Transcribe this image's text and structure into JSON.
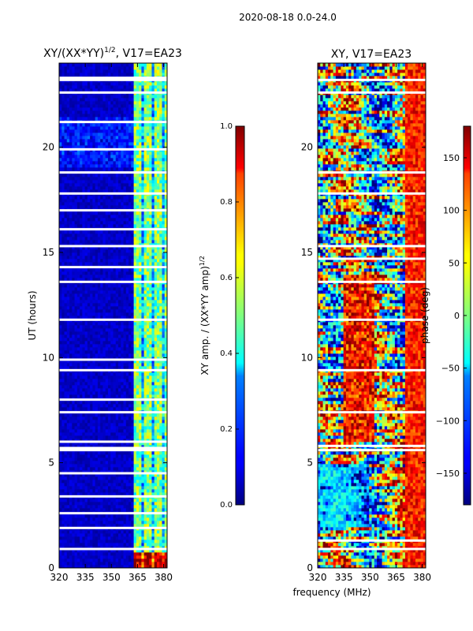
{
  "suptitle": "2020-08-18 0.0-24.0",
  "shared": {
    "xlabel": "frequency (MHz)",
    "ylabel": "UT (hours)",
    "xticks": [
      320,
      335,
      350,
      365,
      380
    ],
    "yticks": [
      0,
      5,
      10,
      15,
      20
    ],
    "xlim": [
      320,
      382
    ],
    "ylim": [
      0,
      24
    ]
  },
  "chart_data": [
    {
      "type": "heatmap",
      "title": "XY/(XX*YY)",
      "title_sup": "1/2",
      "title_suffix": ", V17=EA23",
      "xlabel": "",
      "ylabel": "UT (hours)",
      "xlim": [
        320,
        382
      ],
      "ylim": [
        0,
        24
      ],
      "colorbar": {
        "label": "XY amp. / (XX*YY amp)",
        "label_sup": "1/2",
        "range": [
          0.0,
          1.0
        ],
        "ticks": [
          "0.0",
          "0.2",
          "0.4",
          "0.6",
          "0.8",
          "1.0"
        ],
        "colormap": "jet"
      },
      "description": "amplitude ratio per frequency channel vs time; mostly low (~0.05) below 363 MHz, elevated (0.3-0.6) in channels 363-381 MHz, peaks near 0.9 at 364-378 MHz around 0.5 h",
      "gap_hours": [
        0.9,
        1.9,
        2.6,
        3.4,
        4.5,
        5.6,
        5.7,
        6.0,
        7.4,
        8.0,
        9.4,
        9.9,
        11.8,
        13.6,
        14.3,
        15.3,
        16.1,
        17.0,
        17.8,
        18.8,
        19.9,
        21.2,
        22.6,
        23.2,
        23.3
      ]
    },
    {
      "type": "heatmap",
      "title": "XY, V17=EA23",
      "xlabel": "frequency (MHz)",
      "ylabel": "",
      "xlim": [
        320,
        382
      ],
      "ylim": [
        0,
        24
      ],
      "colorbar": {
        "label": "phase (deg)",
        "range": [
          -180,
          180
        ],
        "ticks": [
          "150",
          "100",
          "50",
          "0",
          "−50",
          "−100",
          "−150"
        ],
        "tick_values": [
          150,
          100,
          50,
          0,
          -50,
          -100,
          -150
        ],
        "colormap": "jet"
      },
      "description": "cross-hand phase per channel vs time; noisy, ranging over full -180..180 deg with red/yellow patches near 340-350 MHz and blue patches at 2-5 h",
      "gap_hours": [
        0.9,
        1.3,
        5.6,
        5.8,
        7.4,
        9.4,
        11.8,
        13.6,
        14.7,
        15.3,
        17.8,
        18.8,
        22.6,
        23.2
      ]
    }
  ]
}
